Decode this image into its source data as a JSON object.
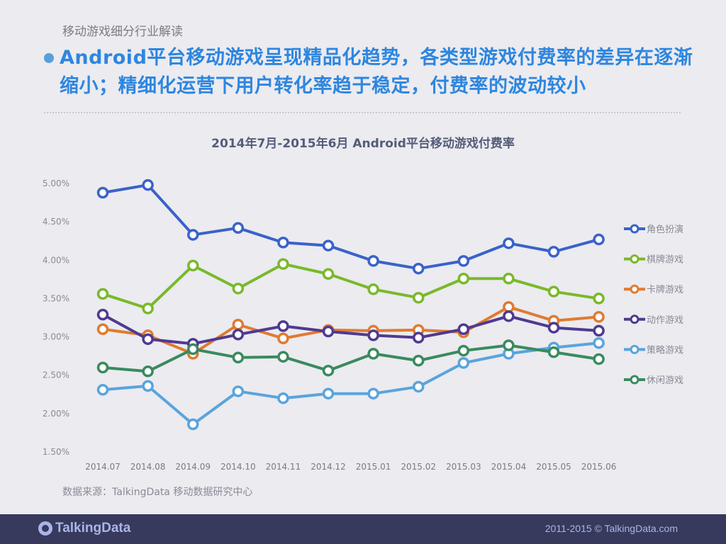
{
  "header": {
    "section": "移动游戏细分行业解读",
    "headline": "Android平台移动游戏呈现精品化趋势，各类型游戏付费率的差异在逐渐缩小；精细化运营下用户转化率趋于稳定，付费率的波动较小"
  },
  "source": "数据来源：TalkingData 移动数据研究中心",
  "footer": {
    "logo": "TalkingData",
    "copyright": "2011-2015 © TalkingData.com"
  },
  "chart_data": {
    "type": "line",
    "title": "2014年7月-2015年6月 Android平台移动游戏付费率",
    "xlabel": "",
    "ylabel": "",
    "ylim": [
      1.5,
      5.0
    ],
    "yticks": [
      "5.00%",
      "4.50%",
      "4.00%",
      "3.50%",
      "3.00%",
      "2.50%",
      "2.00%",
      "1.50%"
    ],
    "grid": false,
    "legend_position": "right",
    "categories": [
      "2014.07",
      "2014.08",
      "2014.09",
      "2014.10",
      "2014.11",
      "2014.12",
      "2015.01",
      "2015.02",
      "2015.03",
      "2015.04",
      "2015.05",
      "2015.06"
    ],
    "series": [
      {
        "name": "角色扮演",
        "color": "#3a62c9",
        "values": [
          4.88,
          4.98,
          4.33,
          4.42,
          4.23,
          4.19,
          3.99,
          3.89,
          3.99,
          4.22,
          4.11,
          4.27
        ]
      },
      {
        "name": "棋牌游戏",
        "color": "#7ab929",
        "values": [
          3.56,
          3.37,
          3.93,
          3.63,
          3.95,
          3.82,
          3.62,
          3.51,
          3.76,
          3.76,
          3.59,
          3.5
        ]
      },
      {
        "name": "卡牌游戏",
        "color": "#e07b30",
        "values": [
          3.1,
          3.02,
          2.78,
          3.16,
          2.98,
          3.09,
          3.08,
          3.09,
          3.06,
          3.39,
          3.21,
          3.26
        ]
      },
      {
        "name": "动作游戏",
        "color": "#4f3a8f",
        "values": [
          3.29,
          2.97,
          2.91,
          3.03,
          3.14,
          3.07,
          3.02,
          2.99,
          3.1,
          3.27,
          3.12,
          3.08
        ]
      },
      {
        "name": "策略游戏",
        "color": "#5aa4dc",
        "values": [
          2.31,
          2.36,
          1.86,
          2.29,
          2.2,
          2.26,
          2.26,
          2.35,
          2.66,
          2.78,
          2.86,
          2.92
        ]
      },
      {
        "name": "休闲游戏",
        "color": "#3a8a5e",
        "values": [
          2.6,
          2.55,
          2.84,
          2.73,
          2.74,
          2.56,
          2.78,
          2.69,
          2.82,
          2.89,
          2.8,
          2.71
        ]
      }
    ]
  }
}
